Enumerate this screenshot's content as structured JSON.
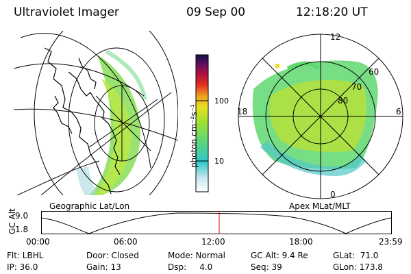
{
  "header": {
    "title": "Ultraviolet Imager",
    "date": "09 Sep 00",
    "time": "12:18:20 UT"
  },
  "left_panel": {
    "label": "Geographic Lat/Lon"
  },
  "right_panel": {
    "label": "Apex  MLat/MLT",
    "lat_labels": [
      "80",
      "70",
      "60"
    ],
    "mlt_labels": {
      "top": "12",
      "left": "18",
      "right": "6",
      "bottom": "0"
    }
  },
  "colorbar": {
    "unit_label": "photon cm⁻²s⁻¹",
    "ticks": [
      "100",
      "10"
    ]
  },
  "timeline": {
    "axis_label": "GC Alt",
    "y_ticks": [
      "9.0",
      "1.8"
    ],
    "x_ticks": [
      "00:00",
      "06:00",
      "12:00",
      "18:00",
      "23:59"
    ]
  },
  "info": {
    "row1": {
      "flt": "Flt: LBHL",
      "door": "Door: Closed",
      "mode": "Mode: Normal",
      "gc_alt": "GC Alt: 9.4 Re",
      "glat": "GLat:  71.0"
    },
    "row2": {
      "ip": "IP: 36.0",
      "gain": "Gain: 13",
      "dsp": "Dsp:     4.0",
      "seq": "Seq: 39",
      "glon": "GLon: 173.8"
    }
  },
  "colors": {
    "timeline_marker": "#e00000",
    "aurora_bright": "#9be030",
    "aurora_mid": "#60d870",
    "aurora_dim": "#30c8c8"
  }
}
